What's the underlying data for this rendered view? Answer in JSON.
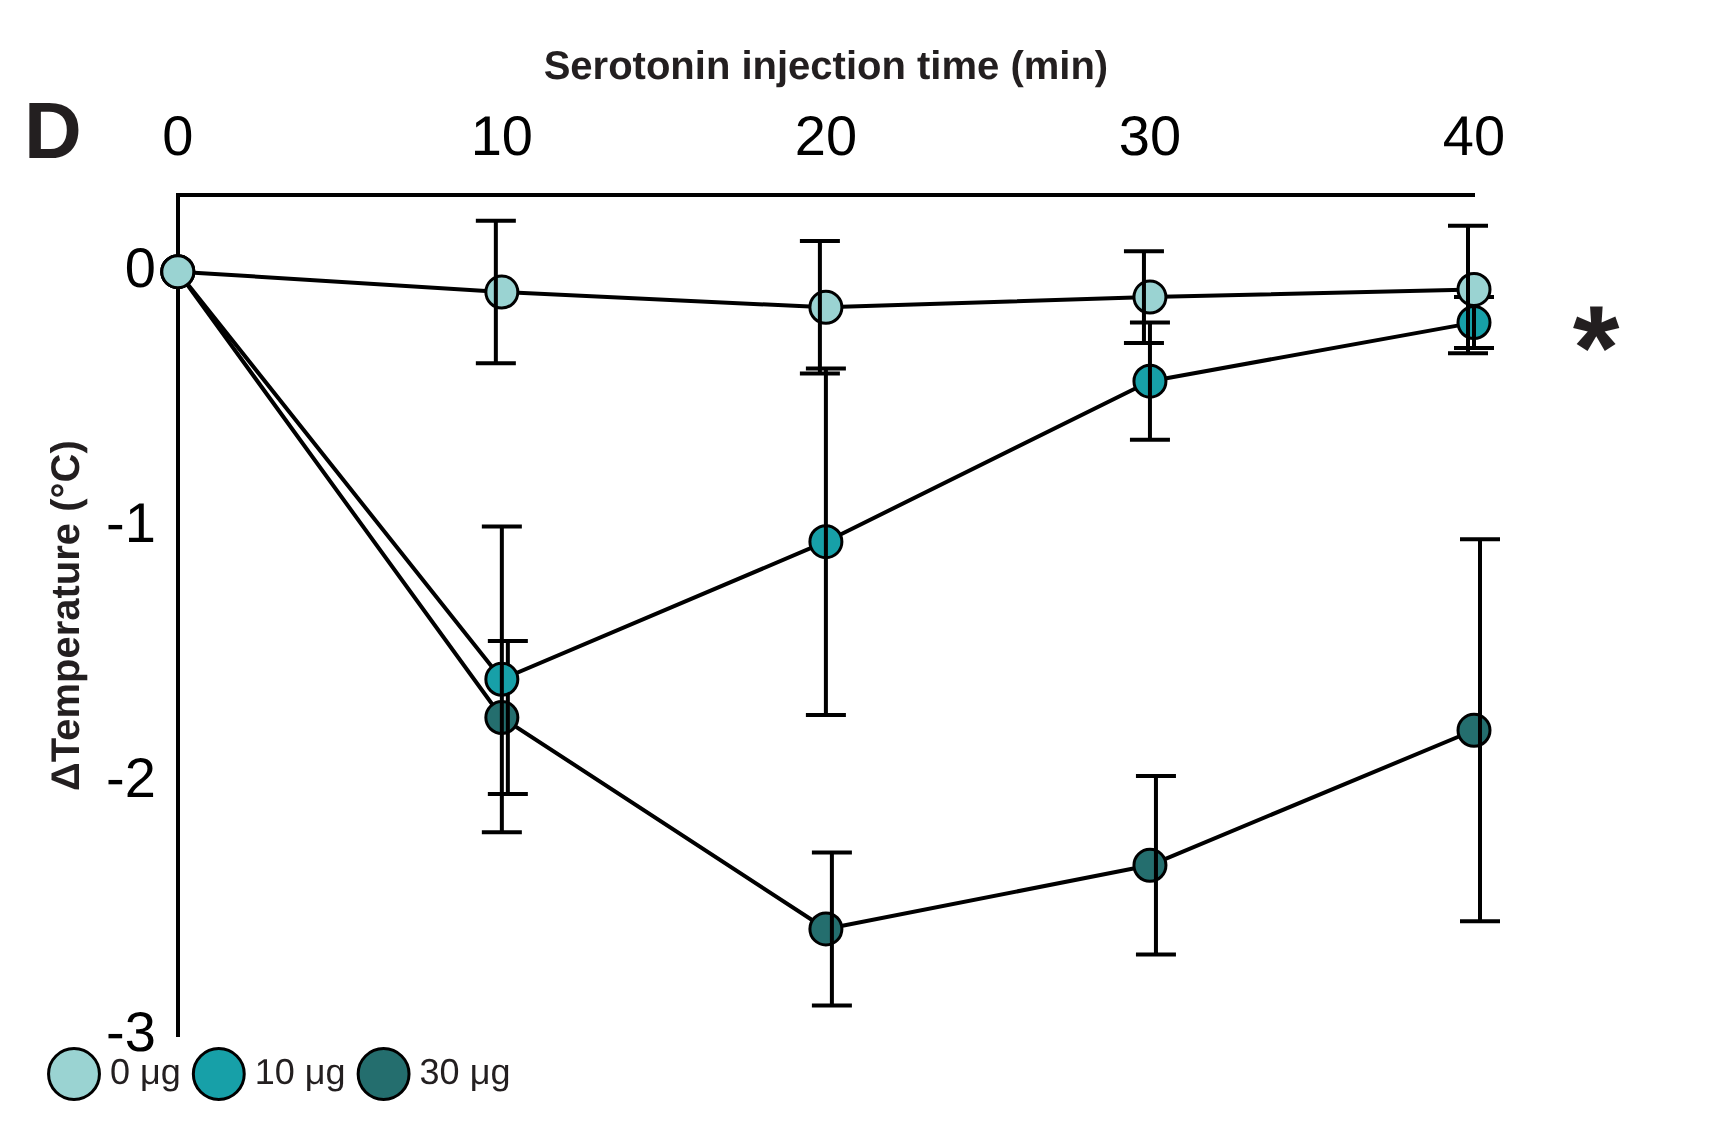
{
  "chart_data": {
    "type": "line",
    "xlabel": "Serotonin injection time (min)",
    "ylabel": "ΔTemperature (°C)",
    "annotations": [
      "D",
      "*"
    ],
    "x": [
      0,
      10,
      20,
      30,
      40
    ],
    "xlim": [
      0,
      40
    ],
    "xticks": [
      0,
      10,
      20,
      30,
      40
    ],
    "ylim": [
      -3,
      0.3
    ],
    "yticks": [
      0,
      -1,
      -2,
      -3
    ],
    "series": [
      {
        "name": "0 μg",
        "color": "#9ad3d2",
        "values": [
          0,
          -0.08,
          -0.14,
          -0.1,
          -0.07
        ],
        "errors": [
          null,
          0.28,
          0.26,
          0.18,
          0.25
        ]
      },
      {
        "name": "10 μg",
        "color": "#17a0a8",
        "values": [
          0,
          -1.6,
          -1.06,
          -0.43,
          -0.2
        ],
        "errors": [
          null,
          0.6,
          0.68,
          0.23,
          0.1
        ]
      },
      {
        "name": "30 μg",
        "color": "#246e6e",
        "values": [
          0,
          -1.75,
          -2.58,
          -2.33,
          -1.8
        ],
        "errors": [
          null,
          0.3,
          0.3,
          0.35,
          0.75
        ]
      }
    ],
    "legend": "bottom left",
    "marker": "circle",
    "grid": false
  }
}
